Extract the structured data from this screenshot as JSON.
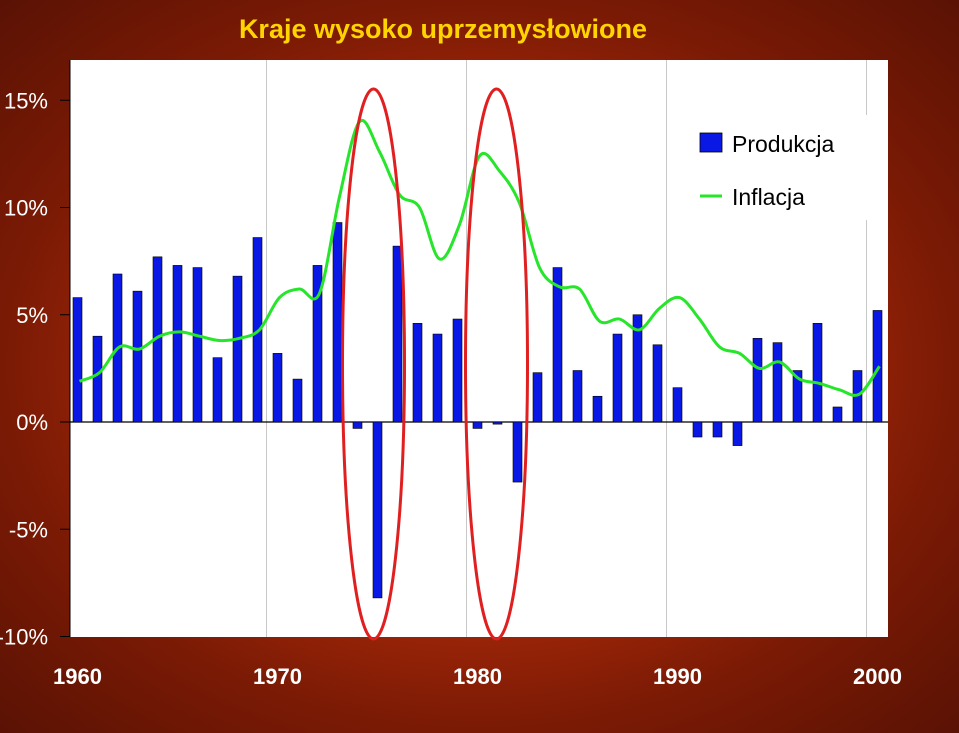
{
  "chart_data": {
    "type": "bar",
    "title": "Kraje wysoko uprzemysłowione",
    "xlabel": "",
    "ylabel": "",
    "ylim": [
      -10,
      15
    ],
    "y_ticks": [
      15,
      10,
      5,
      0,
      -5,
      -10
    ],
    "y_tick_labels": [
      "15%",
      "10%",
      "5%",
      "0%",
      "-5%",
      "-10%"
    ],
    "x_ticks": [
      1960,
      1970,
      1980,
      1990,
      2000
    ],
    "x_tick_labels": [
      "1960",
      "1970",
      "1980",
      "1990",
      "2000"
    ],
    "grid": "vertical lines at decades",
    "legend_position": "top-right",
    "colors": {
      "bar": "#0a18e6",
      "line": "#27e52a",
      "ellipse": "#e02020",
      "title": "#ffd400",
      "plot_bg": "#ffffff"
    },
    "series": [
      {
        "name": "Produkcja",
        "kind": "bar",
        "x": [
          1960,
          1961,
          1962,
          1963,
          1964,
          1965,
          1966,
          1967,
          1968,
          1969,
          1970,
          1971,
          1972,
          1973,
          1974,
          1975,
          1976,
          1977,
          1978,
          1979,
          1980,
          1981,
          1982,
          1983,
          1984,
          1985,
          1986,
          1987,
          1988,
          1989,
          1990,
          1991,
          1992,
          1993,
          1994,
          1995,
          1996,
          1997,
          1998,
          1999,
          2000
        ],
        "values": [
          5.8,
          4.0,
          6.9,
          6.1,
          7.7,
          7.3,
          7.2,
          3.0,
          6.8,
          8.6,
          3.2,
          2.0,
          7.3,
          9.3,
          -0.3,
          -8.2,
          8.2,
          4.6,
          4.1,
          4.8,
          -0.3,
          -0.1,
          -2.8,
          2.3,
          7.2,
          2.4,
          1.2,
          4.1,
          5.0,
          3.6,
          1.6,
          -0.7,
          -0.7,
          -1.1,
          3.9,
          3.7,
          2.4,
          4.6,
          0.7,
          2.4,
          5.2
        ]
      },
      {
        "name": "Inflacja",
        "kind": "line",
        "x": [
          1960,
          1961,
          1962,
          1963,
          1964,
          1965,
          1966,
          1967,
          1968,
          1969,
          1970,
          1971,
          1972,
          1973,
          1974,
          1975,
          1976,
          1977,
          1978,
          1979,
          1980,
          1981,
          1982,
          1983,
          1984,
          1985,
          1986,
          1987,
          1988,
          1989,
          1990,
          1991,
          1992,
          1993,
          1994,
          1995,
          1996,
          1997,
          1998,
          1999,
          2000
        ],
        "values": [
          1.9,
          2.3,
          3.5,
          3.4,
          4.0,
          4.2,
          4.0,
          3.8,
          3.9,
          4.3,
          5.8,
          6.2,
          6.0,
          10.5,
          14.0,
          12.6,
          10.6,
          10.0,
          7.6,
          9.2,
          12.4,
          11.7,
          10.2,
          7.2,
          6.3,
          6.2,
          4.7,
          4.8,
          4.3,
          5.3,
          5.8,
          4.8,
          3.5,
          3.2,
          2.5,
          2.8,
          2.0,
          1.8,
          1.5,
          1.3,
          2.6
        ]
      }
    ],
    "highlights": [
      {
        "x": 1975,
        "label": ""
      },
      {
        "x": 1981,
        "label": ""
      }
    ]
  }
}
